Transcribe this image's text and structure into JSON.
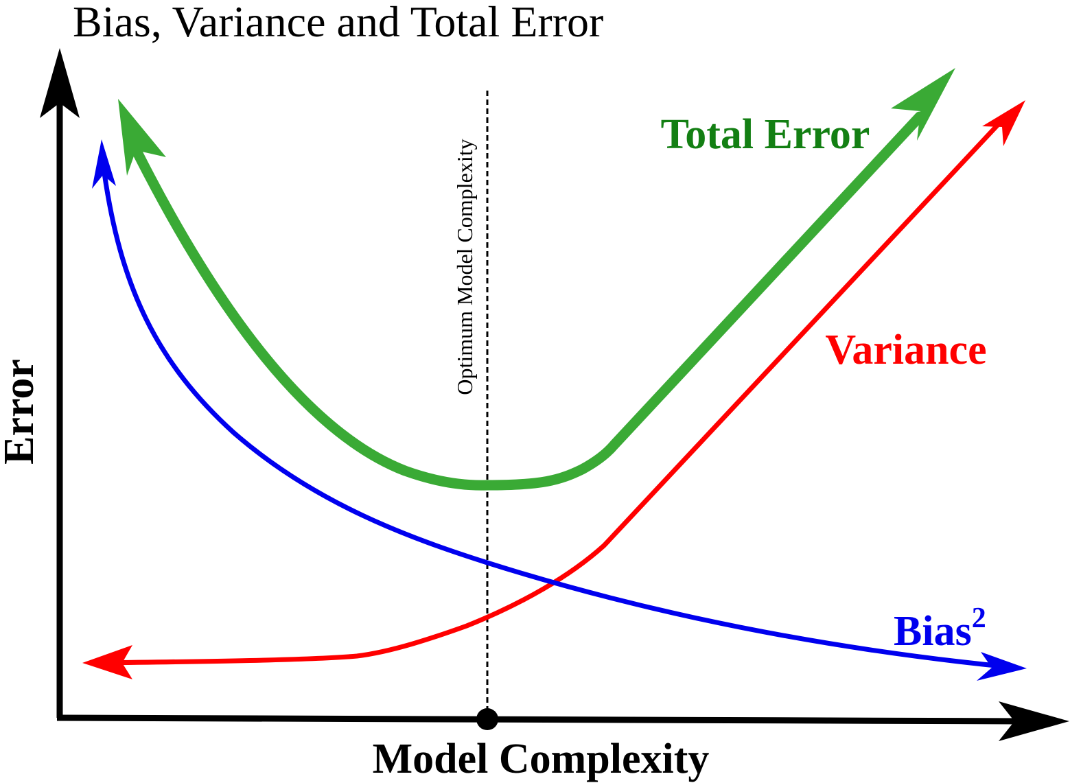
{
  "title": "Bias, Variance and Total Error",
  "x_axis_label": "Model Complexity",
  "y_axis_label": "Error",
  "optimum_label": "Optimum Model Complexity",
  "curves": {
    "total_error": {
      "label": "Total Error",
      "color": "#3aaa35",
      "label_color": "#137f13"
    },
    "variance": {
      "label": "Variance",
      "color": "#ff0000",
      "label_color": "#ff0000"
    },
    "bias": {
      "label": "Bias",
      "superscript": "2",
      "color": "#0000ee",
      "label_color": "#0000ee"
    }
  },
  "colors": {
    "axis": "#000000",
    "optimum_line": "#000000"
  }
}
